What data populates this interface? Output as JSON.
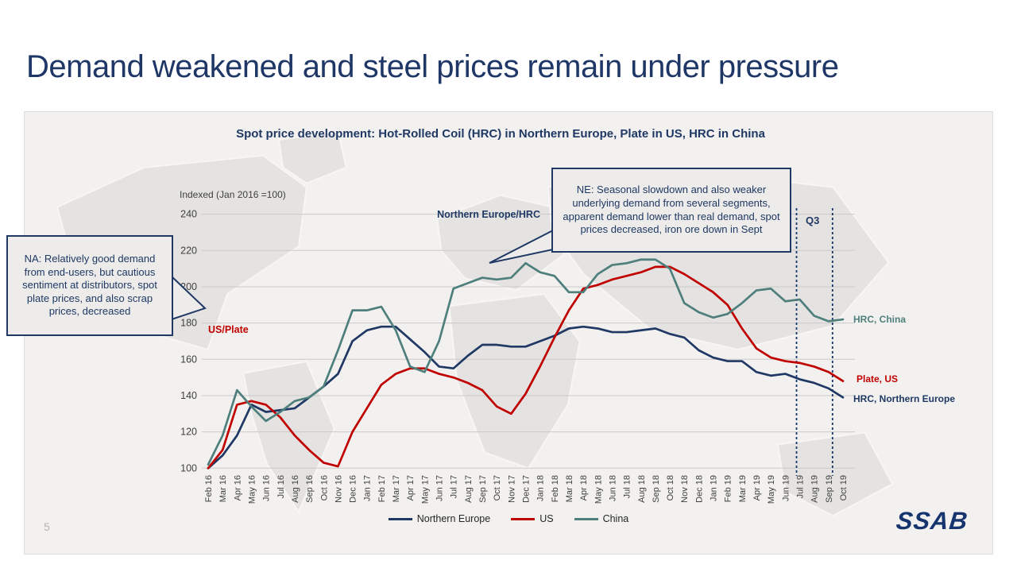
{
  "slide": {
    "title": "Demand weakened and steel prices remain under pressure",
    "page_number": "5",
    "logo": "SSAB"
  },
  "chart": {
    "title": "Spot price development: Hot-Rolled Coil (HRC) in Northern Europe, Plate in US, HRC in China",
    "axis_note": "Indexed (Jan 2016 =100)",
    "q3_label": "Q3",
    "inline_labels": {
      "ne": "Northern Europe/HRC",
      "us": "US/Plate"
    },
    "series_end_labels": {
      "china": "HRC, China",
      "us": "Plate, US",
      "ne": "HRC, Northern Europe"
    },
    "annotations": {
      "ne": "NE: Seasonal slowdown and also weaker underlying demand from several segments, apparent demand lower than real demand, spot prices decreased, iron ore down in Sept",
      "na": "NA: Relatively good demand from end-users, but cautious sentiment at distributors, spot plate prices, and also scrap prices, decreased"
    },
    "colors": {
      "navy": "#1f3864",
      "red": "#c00000",
      "teal": "#4e7f7c",
      "gridline": "#cbcac8"
    }
  },
  "chart_data": {
    "type": "line",
    "title": "Spot price development: Hot-Rolled Coil (HRC) in Northern Europe, Plate in US, HRC in China",
    "ylabel": "Indexed (Jan 2016 =100)",
    "ylim": [
      100,
      240
    ],
    "yticks": [
      100,
      120,
      140,
      160,
      180,
      200,
      220,
      240
    ],
    "grid": "horizontal",
    "legend_position": "bottom",
    "q3_dashed_span_indices": [
      41,
      43
    ],
    "x": [
      "Feb 16",
      "Mar 16",
      "Apr 16",
      "May 16",
      "Jun 16",
      "Jul 16",
      "Aug 16",
      "Sep 16",
      "Oct 16",
      "Nov 16",
      "Dec 16",
      "Jan 17",
      "Feb 17",
      "Mar 17",
      "Apr 17",
      "May 17",
      "Jun 17",
      "Jul 17",
      "Aug 17",
      "Sep 17",
      "Oct 17",
      "Nov 17",
      "Dec 17",
      "Jan 18",
      "Feb 18",
      "Mar 18",
      "Apr 18",
      "May 18",
      "Jun 18",
      "Jul 18",
      "Aug 18",
      "Sep 18",
      "Oct 18",
      "Nov 18",
      "Dec 18",
      "Jan 19",
      "Feb 19",
      "Mar 19",
      "Apr 19",
      "May 19",
      "Jun 19",
      "Jul 19",
      "Aug 19",
      "Sep 19",
      "Oct 19"
    ],
    "series": [
      {
        "name": "Northern Europe",
        "color": "#1f3864",
        "values": [
          100,
          107,
          118,
          135,
          131,
          132,
          133,
          139,
          145,
          152,
          170,
          176,
          178,
          178,
          171,
          164,
          156,
          155,
          162,
          168,
          168,
          167,
          167,
          170,
          173,
          177,
          178,
          177,
          175,
          175,
          176,
          177,
          174,
          172,
          165,
          161,
          159,
          159,
          153,
          151,
          152,
          149,
          147,
          144,
          139
        ]
      },
      {
        "name": "US",
        "color": "#c00000",
        "values": [
          100,
          110,
          135,
          137,
          135,
          128,
          118,
          110,
          103,
          101,
          120,
          133,
          146,
          152,
          155,
          155,
          152,
          150,
          147,
          143,
          134,
          130,
          141,
          156,
          172,
          187,
          199,
          201,
          204,
          206,
          208,
          211,
          211,
          207,
          202,
          197,
          190,
          177,
          166,
          161,
          159,
          158,
          156,
          153,
          148
        ]
      },
      {
        "name": "China",
        "color": "#4e7f7c",
        "values": [
          102,
          118,
          143,
          134,
          126,
          131,
          137,
          139,
          145,
          165,
          187,
          187,
          189,
          176,
          156,
          153,
          170,
          199,
          202,
          205,
          204,
          205,
          213,
          208,
          206,
          197,
          197,
          207,
          212,
          213,
          215,
          215,
          210,
          191,
          186,
          183,
          185,
          191,
          198,
          199,
          192,
          193,
          184,
          181,
          182
        ]
      }
    ]
  }
}
